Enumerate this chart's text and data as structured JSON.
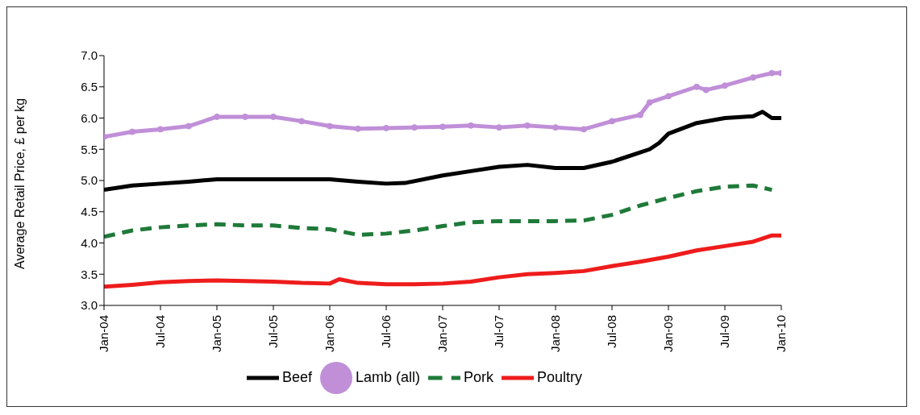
{
  "chart_data": {
    "type": "line",
    "ylabel": "Average Retail Price, £ per kg",
    "xlim": [
      "2004-01",
      "2010-01"
    ],
    "xticks": [
      {
        "value": "2004-01",
        "label": "Jan-04"
      },
      {
        "value": "2004-07",
        "label": "Jul-04"
      },
      {
        "value": "2005-01",
        "label": "Jan-05"
      },
      {
        "value": "2005-07",
        "label": "Jul-05"
      },
      {
        "value": "2006-01",
        "label": "Jan-06"
      },
      {
        "value": "2006-07",
        "label": "Jul-06"
      },
      {
        "value": "2007-01",
        "label": "Jan-07"
      },
      {
        "value": "2007-07",
        "label": "Jul-07"
      },
      {
        "value": "2008-01",
        "label": "Jan-08"
      },
      {
        "value": "2008-07",
        "label": "Jul-08"
      },
      {
        "value": "2009-01",
        "label": "Jan-09"
      },
      {
        "value": "2009-07",
        "label": "Jul-09"
      },
      {
        "value": "2010-01",
        "label": "Jan-10"
      }
    ],
    "ylim": [
      3.0,
      7.0
    ],
    "yticks": [
      {
        "value": 3,
        "label": "3.0"
      },
      {
        "value": 3.5,
        "label": "3.5"
      },
      {
        "value": 4,
        "label": "4.0"
      },
      {
        "value": 4.5,
        "label": "4.5"
      },
      {
        "value": 5,
        "label": "5.0"
      },
      {
        "value": 5.5,
        "label": "5.5"
      },
      {
        "value": 6,
        "label": "6.0"
      },
      {
        "value": 6.5,
        "label": "6.5"
      },
      {
        "value": 7,
        "label": "7.0"
      }
    ],
    "grid": false,
    "legend": "bottom",
    "series": [
      {
        "name": "Poultry",
        "color": "#ee1c1c",
        "line_style": "solid",
        "marker": "none",
        "x": [
          "2004-01",
          "2004-04",
          "2004-07",
          "2004-10",
          "2005-01",
          "2005-04",
          "2005-07",
          "2005-10",
          "2006-01",
          "2006-02",
          "2006-04",
          "2006-07",
          "2006-10",
          "2007-01",
          "2007-04",
          "2007-07",
          "2007-10",
          "2008-01",
          "2008-04",
          "2008-07",
          "2008-10",
          "2009-01",
          "2009-04",
          "2009-07",
          "2009-10",
          "2009-12",
          "2010-01"
        ],
        "values": [
          3.3,
          3.33,
          3.37,
          3.39,
          3.4,
          3.39,
          3.38,
          3.36,
          3.35,
          3.42,
          3.36,
          3.34,
          3.34,
          3.35,
          3.38,
          3.45,
          3.5,
          3.52,
          3.55,
          3.63,
          3.7,
          3.78,
          3.88,
          3.95,
          4.02,
          4.12,
          4.12
        ]
      },
      {
        "name": "Beef",
        "color": "#000000",
        "line_style": "solid",
        "marker": "none",
        "x": [
          "2004-01",
          "2004-04",
          "2004-07",
          "2004-10",
          "2005-01",
          "2005-07",
          "2006-01",
          "2006-04",
          "2006-07",
          "2006-09",
          "2007-01",
          "2007-04",
          "2007-07",
          "2007-10",
          "2008-01",
          "2008-04",
          "2008-07",
          "2008-10",
          "2008-11",
          "2008-12",
          "2009-01",
          "2009-04",
          "2009-07",
          "2009-10",
          "2009-11",
          "2009-12",
          "2010-01"
        ],
        "values": [
          4.85,
          4.92,
          4.95,
          4.98,
          5.02,
          5.02,
          5.02,
          4.98,
          4.95,
          4.96,
          5.08,
          5.15,
          5.22,
          5.25,
          5.2,
          5.2,
          5.3,
          5.45,
          5.5,
          5.6,
          5.75,
          5.92,
          6.0,
          6.03,
          6.1,
          6.0,
          6.0
        ]
      },
      {
        "name": "Pork",
        "color": "#1f7a3a",
        "line_style": "dashed",
        "marker": "none",
        "x": [
          "2004-01",
          "2004-04",
          "2004-07",
          "2004-10",
          "2005-01",
          "2005-04",
          "2005-07",
          "2005-10",
          "2006-01",
          "2006-04",
          "2006-07",
          "2006-10",
          "2007-01",
          "2007-04",
          "2007-07",
          "2007-10",
          "2008-01",
          "2008-04",
          "2008-07",
          "2008-10",
          "2009-01",
          "2009-04",
          "2009-07",
          "2009-10",
          "2009-12"
        ],
        "values": [
          4.1,
          4.2,
          4.25,
          4.28,
          4.3,
          4.28,
          4.28,
          4.24,
          4.22,
          4.13,
          4.15,
          4.2,
          4.27,
          4.33,
          4.35,
          4.35,
          4.35,
          4.36,
          4.45,
          4.6,
          4.72,
          4.83,
          4.9,
          4.92,
          4.85
        ]
      },
      {
        "name": "Lamb (all)",
        "color": "#c08fd8",
        "line_style": "solid",
        "marker": "circle",
        "x": [
          "2004-01",
          "2004-04",
          "2004-07",
          "2004-10",
          "2005-01",
          "2005-04",
          "2005-07",
          "2005-10",
          "2006-01",
          "2006-04",
          "2006-07",
          "2006-10",
          "2007-01",
          "2007-04",
          "2007-07",
          "2007-10",
          "2008-01",
          "2008-04",
          "2008-07",
          "2008-10",
          "2008-11",
          "2009-01",
          "2009-04",
          "2009-05",
          "2009-07",
          "2009-10",
          "2009-12",
          "2010-01"
        ],
        "values": [
          5.7,
          5.78,
          5.82,
          5.87,
          6.02,
          6.02,
          6.02,
          5.95,
          5.87,
          5.83,
          5.84,
          5.85,
          5.86,
          5.88,
          5.85,
          5.88,
          5.85,
          5.82,
          5.95,
          6.05,
          6.25,
          6.35,
          6.5,
          6.45,
          6.52,
          6.65,
          6.72,
          6.72
        ]
      }
    ]
  }
}
